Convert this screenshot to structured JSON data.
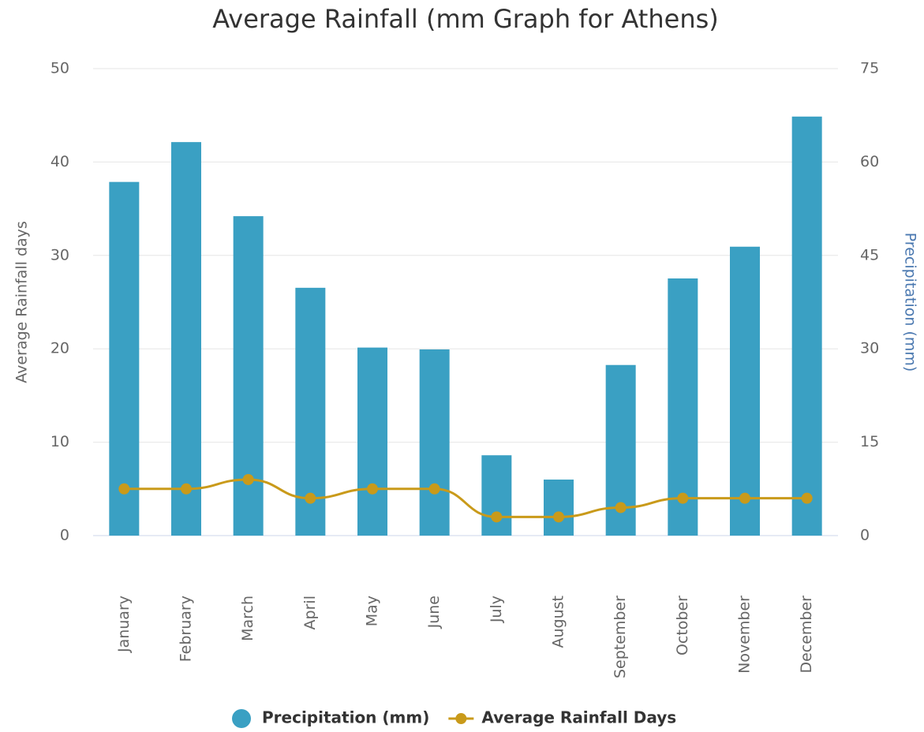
{
  "chart_data": {
    "type": "combo",
    "title": "Average Rainfall (mm Graph for Athens)",
    "y_label": "Average Rainfall days",
    "y2_label": "Precipitation (mm)",
    "categories": [
      "January",
      "February",
      "March",
      "April",
      "May",
      "June",
      "July",
      "August",
      "September",
      "October",
      "November",
      "December"
    ],
    "series": [
      {
        "name": "Precipitation (mm)",
        "type": "bar",
        "axis": "y2",
        "color": "#3aa0c3",
        "values": [
          56.8,
          63.2,
          51.3,
          39.8,
          30.2,
          29.9,
          12.9,
          9.0,
          27.4,
          41.3,
          46.4,
          67.3
        ]
      },
      {
        "name": "Average Rainfall Days",
        "type": "line",
        "axis": "y",
        "color": "#c99a1a",
        "values": [
          5,
          5,
          6,
          4,
          5,
          5,
          2,
          2,
          3,
          4,
          4,
          4
        ]
      }
    ],
    "ylim": [
      0,
      50
    ],
    "yticks": [
      0,
      10,
      20,
      30,
      40,
      50
    ],
    "y2lim": [
      0,
      75
    ],
    "y2ticks": [
      0,
      15,
      30,
      45,
      60,
      75
    ],
    "grid": true,
    "legend": "bottom"
  }
}
